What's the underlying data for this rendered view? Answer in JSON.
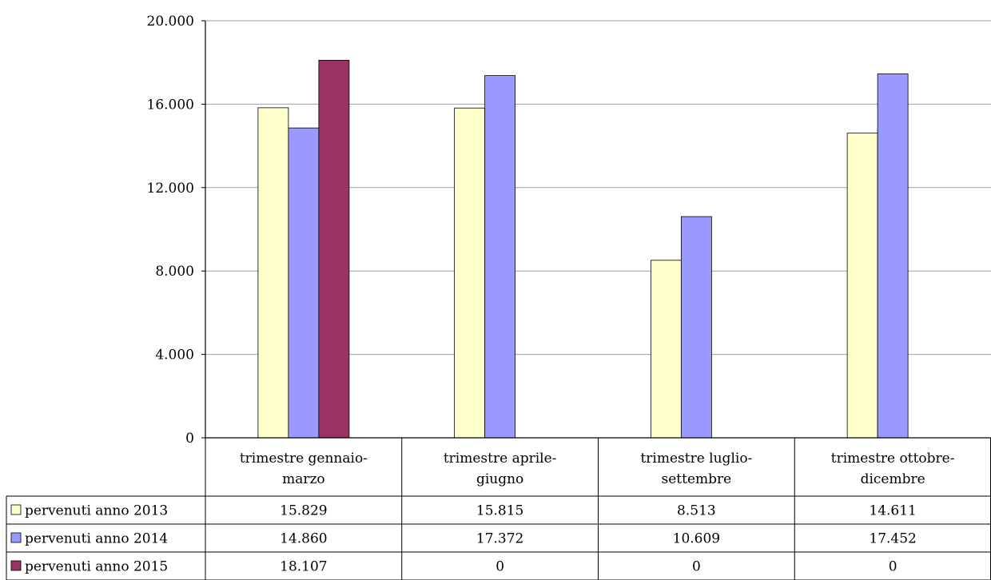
{
  "chart_data": {
    "type": "bar",
    "categories": [
      [
        "trimestre gennaio-",
        "marzo"
      ],
      [
        "trimestre aprile-",
        "giugno"
      ],
      [
        "trimestre luglio-",
        "settembre"
      ],
      [
        "trimestre ottobre-",
        "dicembre"
      ]
    ],
    "series": [
      {
        "name": "pervenuti anno 2013",
        "color": "#ffffcc",
        "values": [
          15829,
          15815,
          8513,
          14611
        ],
        "labels": [
          "15.829",
          "15.815",
          "8.513",
          "14.611"
        ]
      },
      {
        "name": "pervenuti anno 2014",
        "color": "#9999ff",
        "values": [
          14860,
          17372,
          10609,
          17452
        ],
        "labels": [
          "14.860",
          "17.372",
          "10.609",
          "17.452"
        ]
      },
      {
        "name": "pervenuti anno 2015",
        "color": "#993366",
        "values": [
          18107,
          0,
          0,
          0
        ],
        "labels": [
          "18.107",
          "0",
          "0",
          "0"
        ]
      }
    ],
    "ylim": [
      0,
      20000
    ],
    "yticks": [
      0,
      4000,
      8000,
      12000,
      16000,
      20000
    ],
    "ytick_labels": [
      "0",
      "4.000",
      "8.000",
      "12.000",
      "16.000",
      "20.000"
    ],
    "grid": true,
    "legend": "data-table"
  }
}
